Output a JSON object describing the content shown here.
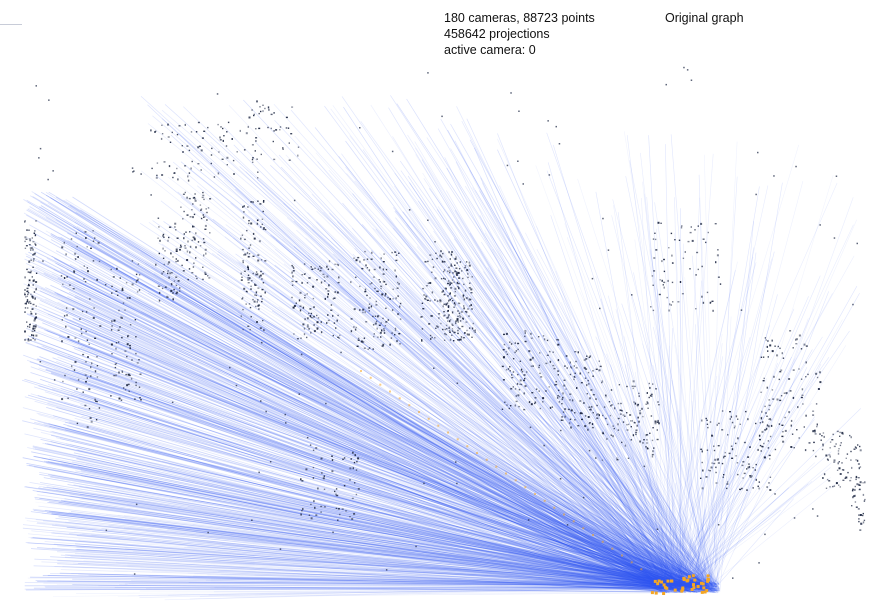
{
  "hud": {
    "stats_line1": "180 cameras, 88723 points",
    "stats_line2": "458642 projections",
    "stats_line3": "active camera: 0",
    "graph_label": "Original graph"
  },
  "colors": {
    "background": "#ffffff",
    "ray": "#2f55f0",
    "point": "#1a2440",
    "camera": "#f5a623",
    "text": "#111111"
  }
}
